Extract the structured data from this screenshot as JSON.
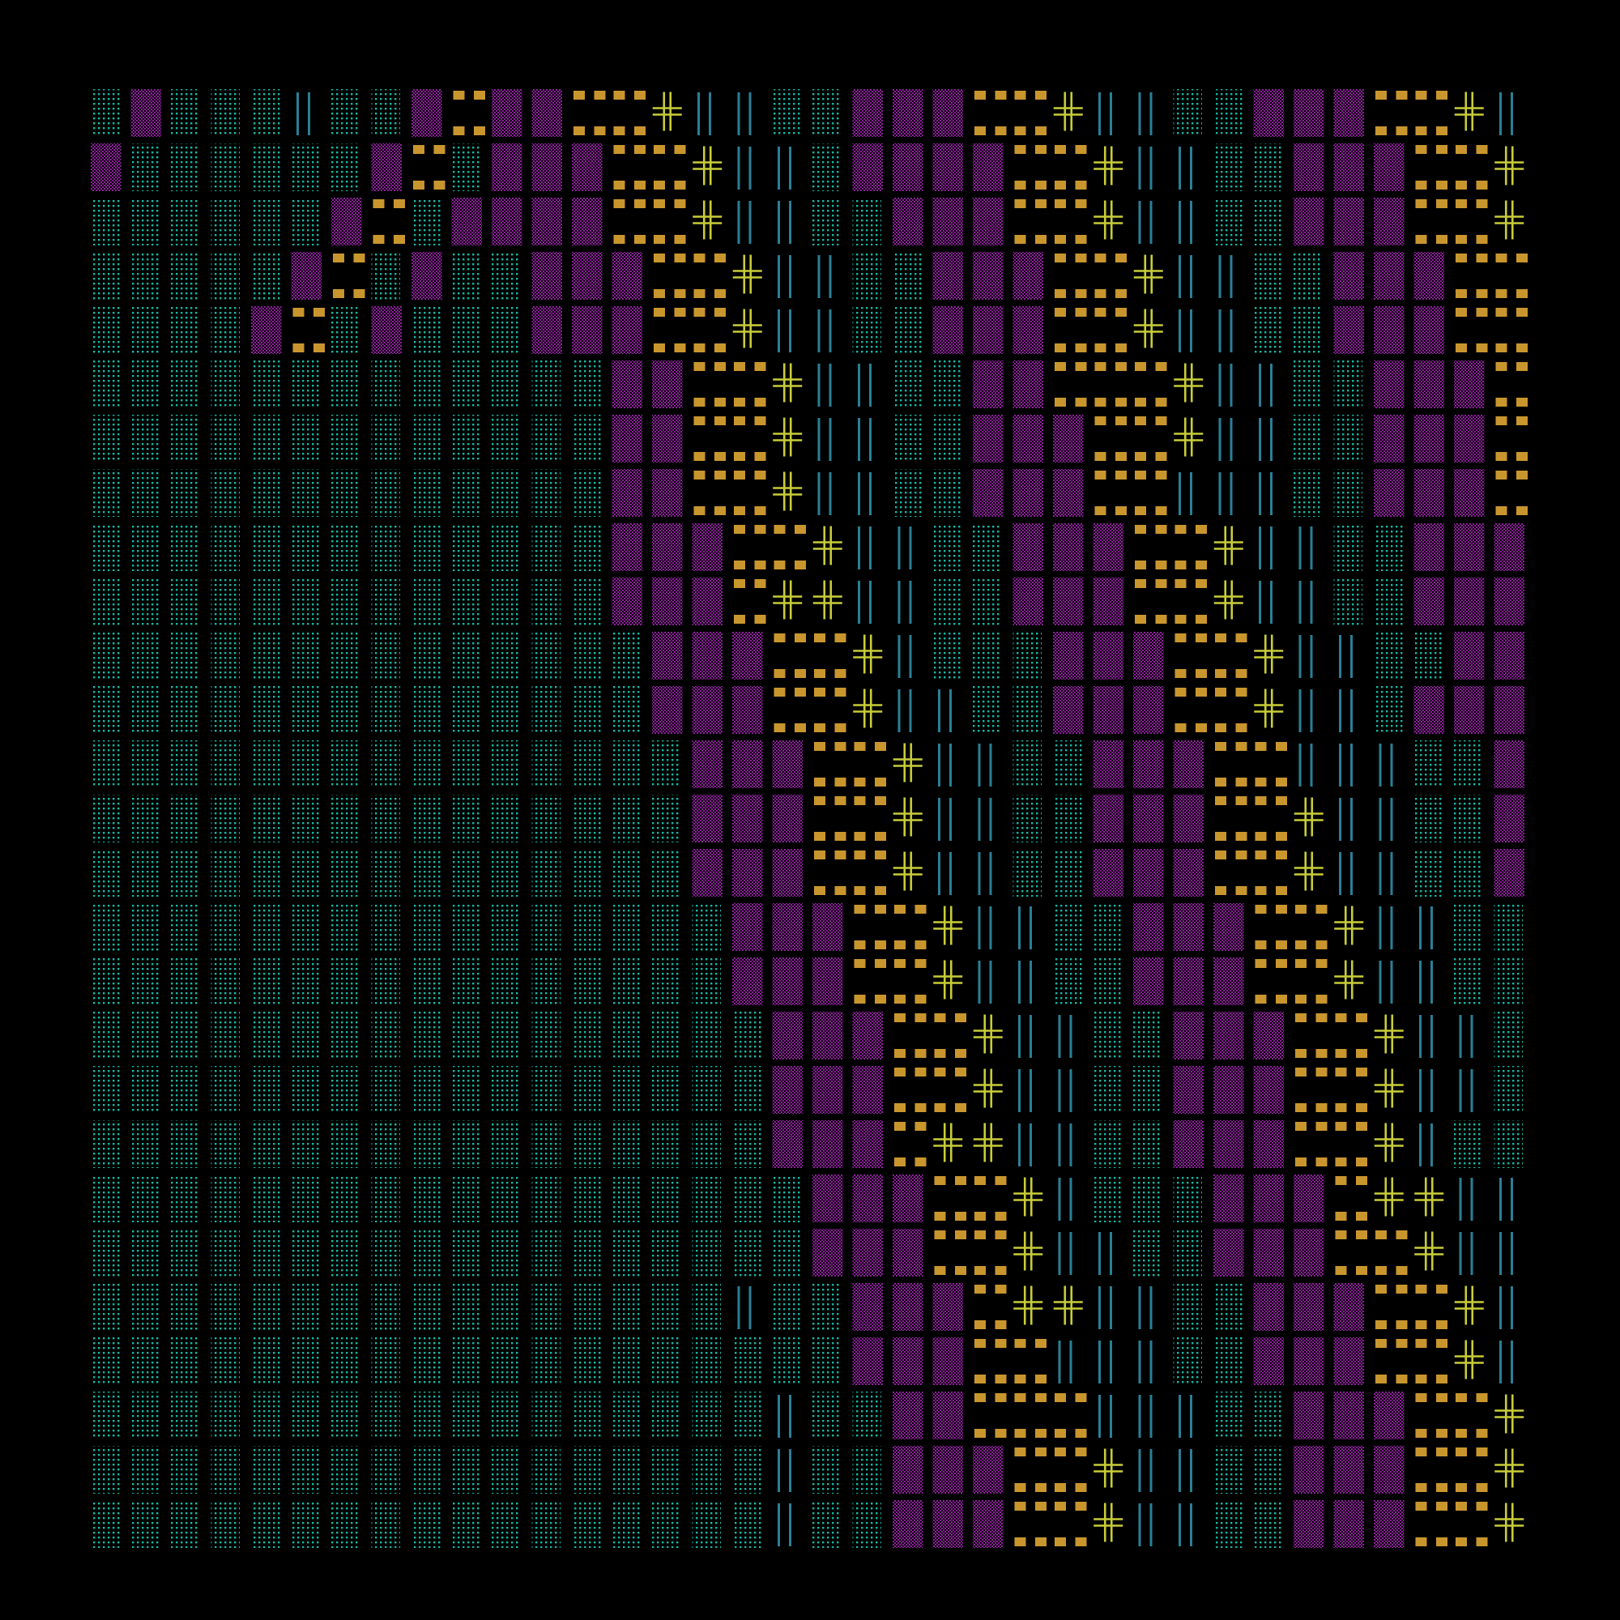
{
  "artwork": {
    "kind": "generative-glyph-grid",
    "columns": 36,
    "rows": 27,
    "background": "#000000",
    "palette": {
      "dots": "#17b8a4",
      "checker": "#8e1f9c",
      "blocks": "#c9962e",
      "cross": "#c8cc38",
      "bars": "#2a7f96"
    },
    "glyph_names": [
      "dots",
      "checker",
      "blocks",
      "cross",
      "bars"
    ]
  }
}
